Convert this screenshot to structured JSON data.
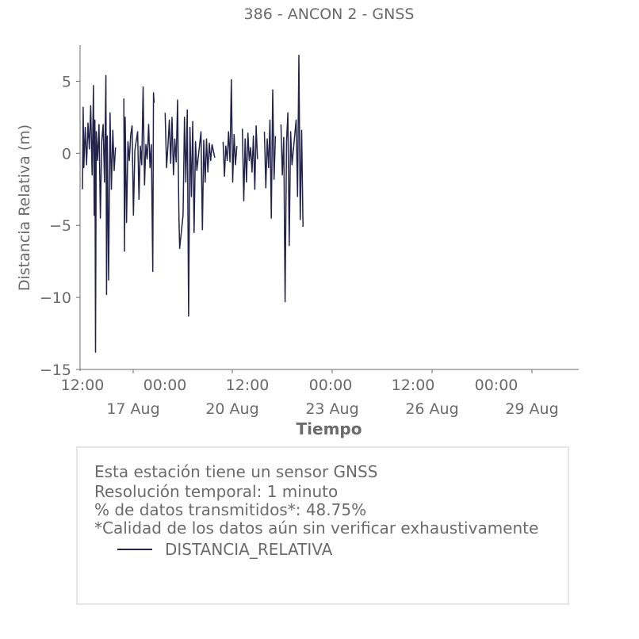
{
  "chart_data": {
    "type": "line",
    "title": "386 - ANCON 2 - GNSS",
    "xlabel": "Tiempo",
    "ylabel": "Distancia Relativa (m)",
    "ylim": [
      -15,
      7.5
    ],
    "xlim": [
      "2024-08-15 12:00",
      "2024-08-30 12:00"
    ],
    "yticks": [
      "5",
      "0",
      "−5",
      "−10",
      "−15"
    ],
    "xticks_minor": [
      "12:00",
      "00:00",
      "12:00",
      "00:00",
      "12:00",
      "00:00"
    ],
    "xticks_major": [
      "17 Aug",
      "20 Aug",
      "23 Aug",
      "26 Aug",
      "29 Aug"
    ],
    "grid": false,
    "line_color": "#22224a",
    "series": [
      {
        "name": "DISTANCIA_RELATIVA",
        "points": [
          [
            "2024-08-15 12:00",
            -2.5
          ],
          [
            "2024-08-15 12:30",
            3.2
          ],
          [
            "2024-08-15 13:00",
            -1.0
          ],
          [
            "2024-08-15 14:00",
            1.8
          ],
          [
            "2024-08-15 15:00",
            -0.8
          ],
          [
            "2024-08-15 16:00",
            2.1
          ],
          [
            "2024-08-15 17:00",
            0.3
          ],
          [
            "2024-08-15 18:00",
            3.3
          ],
          [
            "2024-08-15 19:00",
            -1.5
          ],
          [
            "2024-08-15 20:00",
            4.7
          ],
          [
            "2024-08-15 20:30",
            -4.3
          ],
          [
            "2024-08-15 21:00",
            2.3
          ],
          [
            "2024-08-15 21:30",
            -13.8
          ],
          [
            "2024-08-15 22:00",
            1.5
          ],
          [
            "2024-08-15 23:00",
            -0.5
          ],
          [
            "2024-08-16 00:00",
            2.0
          ],
          [
            "2024-08-16 01:00",
            -4.5
          ],
          [
            "2024-08-16 02:00",
            0.8
          ],
          [
            "2024-08-16 03:00",
            2.0
          ],
          [
            "2024-08-16 04:00",
            -2.0
          ],
          [
            "2024-08-16 05:00",
            5.4
          ],
          [
            "2024-08-16 05:30",
            -9.8
          ],
          [
            "2024-08-16 06:00",
            1.2
          ],
          [
            "2024-08-16 07:00",
            -8.8
          ],
          [
            "2024-08-16 08:00",
            2.8
          ],
          [
            "2024-08-16 09:00",
            -2.5
          ],
          [
            "2024-08-16 10:00",
            1.6
          ],
          [
            "2024-08-16 11:00",
            -1.2
          ],
          [
            "2024-08-16 12:00",
            0.4
          ],
          [
            "2024-08-16 18:00",
            3.8
          ],
          [
            "2024-08-16 18:30",
            -6.8
          ],
          [
            "2024-08-16 19:00",
            2.5
          ],
          [
            "2024-08-16 20:00",
            -4.8
          ],
          [
            "2024-08-16 21:00",
            0.8
          ],
          [
            "2024-08-16 22:00",
            -0.5
          ],
          [
            "2024-08-16 23:00",
            1.3
          ],
          [
            "2024-08-17 00:00",
            1.9
          ],
          [
            "2024-08-17 01:00",
            -4.3
          ],
          [
            "2024-08-17 02:00",
            0.2
          ],
          [
            "2024-08-17 04:00",
            1.5
          ],
          [
            "2024-08-17 05:00",
            -3.2
          ],
          [
            "2024-08-17 06:00",
            0.5
          ],
          [
            "2024-08-17 07:00",
            -0.8
          ],
          [
            "2024-08-17 08:00",
            4.6
          ],
          [
            "2024-08-17 09:00",
            -2.2
          ],
          [
            "2024-08-17 10:00",
            0.6
          ],
          [
            "2024-08-17 11:00",
            -0.4
          ],
          [
            "2024-08-17 12:00",
            2.0
          ],
          [
            "2024-08-17 13:00",
            -1.0
          ],
          [
            "2024-08-17 14:00",
            0.6
          ],
          [
            "2024-08-17 15:00",
            -8.2
          ],
          [
            "2024-08-17 15:30",
            4.2
          ],
          [
            "2024-08-17 16:00",
            3.5
          ],
          [
            "2024-08-18 00:00",
            2.8
          ],
          [
            "2024-08-18 01:00",
            -1.0
          ],
          [
            "2024-08-18 02:00",
            0.5
          ],
          [
            "2024-08-18 03:00",
            2.3
          ],
          [
            "2024-08-18 04:00",
            -0.7
          ],
          [
            "2024-08-18 05:00",
            2.5
          ],
          [
            "2024-08-18 06:00",
            -1.5
          ],
          [
            "2024-08-18 07:00",
            1.0
          ],
          [
            "2024-08-18 08:00",
            -0.6
          ],
          [
            "2024-08-18 09:00",
            3.7
          ],
          [
            "2024-08-18 09:30",
            -0.8
          ],
          [
            "2024-08-18 10:00",
            -4.5
          ],
          [
            "2024-08-18 10:30",
            -6.6
          ],
          [
            "2024-08-18 13:00",
            -4.3
          ],
          [
            "2024-08-18 14:00",
            2.5
          ],
          [
            "2024-08-18 15:00",
            -2.0
          ],
          [
            "2024-08-18 16:00",
            3.0
          ],
          [
            "2024-08-18 17:00",
            -11.3
          ],
          [
            "2024-08-18 18:00",
            1.8
          ],
          [
            "2024-08-18 19:00",
            -3.0
          ],
          [
            "2024-08-18 20:00",
            2.2
          ],
          [
            "2024-08-18 21:00",
            -5.5
          ],
          [
            "2024-08-18 22:00",
            0.8
          ],
          [
            "2024-08-18 23:00",
            -1.2
          ],
          [
            "2024-08-19 02:00",
            1.5
          ],
          [
            "2024-08-19 03:00",
            -5.3
          ],
          [
            "2024-08-19 04:00",
            0.9
          ],
          [
            "2024-08-19 05:00",
            -2.0
          ],
          [
            "2024-08-19 06:00",
            1.0
          ],
          [
            "2024-08-19 07:00",
            -1.3
          ],
          [
            "2024-08-19 08:00",
            0.7
          ],
          [
            "2024-08-19 09:00",
            -0.5
          ],
          [
            "2024-08-19 10:00",
            0.6
          ],
          [
            "2024-08-19 12:00",
            -0.3
          ],
          [
            "2024-08-19 18:00",
            0.8
          ],
          [
            "2024-08-19 19:00",
            -1.6
          ],
          [
            "2024-08-19 20:00",
            0.5
          ],
          [
            "2024-08-19 21:00",
            -0.5
          ],
          [
            "2024-08-19 22:00",
            1.5
          ],
          [
            "2024-08-19 23:00",
            -0.6
          ],
          [
            "2024-08-20 00:00",
            5.1
          ],
          [
            "2024-08-20 01:00",
            -2.0
          ],
          [
            "2024-08-20 02:00",
            1.3
          ],
          [
            "2024-08-20 03:00",
            -0.8
          ],
          [
            "2024-08-20 04:00",
            0.5
          ],
          [
            "2024-08-20 08:00",
            1.7
          ],
          [
            "2024-08-20 09:00",
            -3.3
          ],
          [
            "2024-08-20 10:00",
            1.0
          ],
          [
            "2024-08-20 11:00",
            -2.0
          ],
          [
            "2024-08-20 12:00",
            1.4
          ],
          [
            "2024-08-20 13:00",
            -0.5
          ],
          [
            "2024-08-20 14:00",
            0.4
          ],
          [
            "2024-08-20 15:00",
            -1.3
          ],
          [
            "2024-08-20 16:00",
            1.2
          ],
          [
            "2024-08-20 17:00",
            -2.5
          ],
          [
            "2024-08-20 18:00",
            1.9
          ],
          [
            "2024-08-20 19:00",
            -0.4
          ],
          [
            "2024-08-21 00:00",
            1.5
          ],
          [
            "2024-08-21 01:00",
            -2.4
          ],
          [
            "2024-08-21 02:00",
            1.0
          ],
          [
            "2024-08-21 03:00",
            -1.0
          ],
          [
            "2024-08-21 04:00",
            2.3
          ],
          [
            "2024-08-21 05:00",
            -4.5
          ],
          [
            "2024-08-21 06:00",
            4.4
          ],
          [
            "2024-08-21 07:00",
            -1.8
          ],
          [
            "2024-08-21 08:00",
            1.2
          ],
          [
            "2024-08-21 12:00",
            2.0
          ],
          [
            "2024-08-21 13:00",
            -1.5
          ],
          [
            "2024-08-21 14:00",
            1.1
          ],
          [
            "2024-08-21 15:00",
            -10.3
          ],
          [
            "2024-08-21 16:00",
            0.8
          ],
          [
            "2024-08-21 17:00",
            2.8
          ],
          [
            "2024-08-21 18:00",
            -6.4
          ],
          [
            "2024-08-21 19:00",
            1.5
          ],
          [
            "2024-08-21 20:00",
            -0.8
          ],
          [
            "2024-08-21 23:00",
            2.3
          ],
          [
            "2024-08-22 00:00",
            -3.0
          ],
          [
            "2024-08-22 01:00",
            6.8
          ],
          [
            "2024-08-22 02:00",
            -4.6
          ],
          [
            "2024-08-22 03:00",
            1.6
          ],
          [
            "2024-08-22 04:00",
            -5.1
          ]
        ]
      }
    ],
    "legend_lines": [
      "Esta estación tiene un sensor GNSS",
      "Resolución temporal: 1 minuto",
      "% de datos transmitidos*: 48.75%",
      "*Calidad de los datos aún sin verificar exhaustivamente"
    ],
    "legend_placement": "below"
  }
}
